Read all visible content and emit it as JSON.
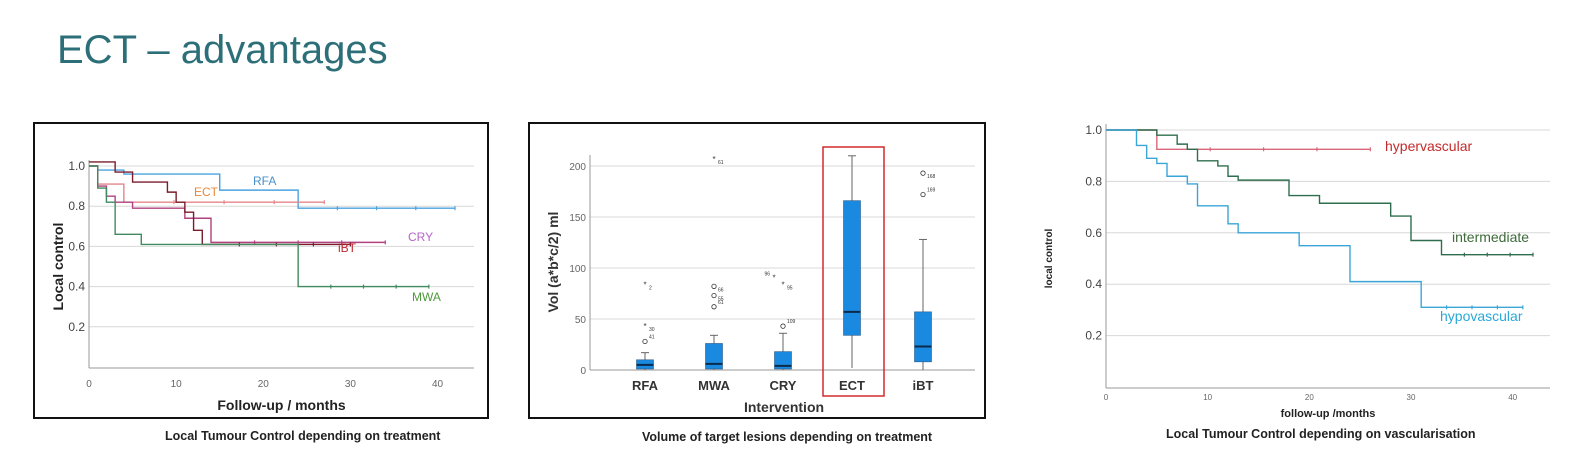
{
  "slide": {
    "title": "ECT – advantages",
    "captions": [
      "Local Tumour Control depending on treatment",
      "Volume of target lesions depending on treatment",
      "Local Tumour Control depending on vascularisation"
    ]
  },
  "chart_data": [
    {
      "type": "line",
      "subtype": "kaplan-meier step",
      "xlabel": "Follow-up / months",
      "ylabel": "Local control",
      "xlim": [
        0,
        42
      ],
      "ylim": [
        0,
        1.0
      ],
      "xticks": [
        "0",
        "10",
        "20",
        "30",
        "40"
      ],
      "yticks": [
        "0.2",
        "0.4",
        "0.6",
        "0.8",
        "1.0"
      ],
      "grid": true,
      "series": [
        {
          "name": "RFA",
          "color": "#4aa3df",
          "label_color": "#4a90c8",
          "steps": [
            [
              0,
              1.0
            ],
            [
              1,
              0.98
            ],
            [
              4,
              0.96
            ],
            [
              15,
              0.88
            ],
            [
              24,
              0.79
            ]
          ],
          "end": 42
        },
        {
          "name": "ECT",
          "color": "#e4868a",
          "label_color": "#e8893a",
          "steps": [
            [
              0,
              1.0
            ],
            [
              1,
              0.91
            ],
            [
              4,
              0.82
            ]
          ],
          "end": 27
        },
        {
          "name": "CRY",
          "color": "#b2427e",
          "label_color": "#b565c9",
          "steps": [
            [
              0,
              1.0
            ],
            [
              1,
              0.9
            ],
            [
              2,
              0.85
            ],
            [
              3,
              0.82
            ],
            [
              5,
              0.79
            ],
            [
              11,
              0.74
            ],
            [
              14,
              0.62
            ]
          ],
          "end": 34
        },
        {
          "name": "iBT",
          "color": "#7a1c2c",
          "label_color": "#c0262e",
          "steps": [
            [
              0,
              1.02
            ],
            [
              3,
              0.97
            ],
            [
              5,
              0.92
            ],
            [
              9,
              0.87
            ],
            [
              10,
              0.82
            ],
            [
              11,
              0.77
            ],
            [
              12,
              0.68
            ],
            [
              13,
              0.61
            ]
          ],
          "end": 30
        },
        {
          "name": "MWA",
          "color": "#3f8a5e",
          "label_color": "#4e9a3c",
          "steps": [
            [
              0,
              1.0
            ],
            [
              1,
              0.89
            ],
            [
              2,
              0.82
            ],
            [
              3,
              0.66
            ],
            [
              6,
              0.61
            ],
            [
              24,
              0.4
            ]
          ],
          "end": 39
        }
      ]
    },
    {
      "type": "box",
      "xlabel": "Intervention",
      "ylabel": "Vol (a*b*c/2) ml",
      "ylim": [
        0,
        210
      ],
      "yticks": [
        "0",
        "50",
        "100",
        "150",
        "200"
      ],
      "grid": true,
      "box_color": "#1a8ae0",
      "highlight": "ECT",
      "highlight_color": "#d42a2a",
      "categories": [
        "RFA",
        "MWA",
        "CRY",
        "ECT",
        "iBT"
      ],
      "boxes": [
        {
          "min": 0,
          "q1": 1,
          "median": 5,
          "q3": 10,
          "max": 17,
          "outliers": [
            {
              "v": 28,
              "label": "41",
              "mark": "o"
            },
            {
              "v": 43,
              "label": "30",
              "mark": "*"
            },
            {
              "v": 84,
              "label": "2",
              "mark": "*"
            }
          ]
        },
        {
          "min": 0,
          "q1": 1,
          "median": 6,
          "q3": 26,
          "max": 34,
          "outliers": [
            {
              "v": 62,
              "label": "61",
              "mark": "o"
            },
            {
              "v": 73,
              "label": "55",
              "mark": "o"
            },
            {
              "v": 82,
              "label": "66",
              "mark": "o"
            },
            {
              "v": 207,
              "label": "61",
              "mark": "*"
            }
          ]
        },
        {
          "min": 0,
          "q1": 1,
          "median": 4,
          "q3": 18,
          "max": 36,
          "outliers": [
            {
              "v": 43,
              "label": "109",
              "mark": "o"
            },
            {
              "v": 84,
              "label": "95",
              "mark": "*"
            },
            {
              "v": 86,
              "label": "96",
              "mark": "*"
            }
          ]
        },
        {
          "min": 2,
          "q1": 34,
          "median": 57,
          "q3": 166,
          "max": 210,
          "outliers": []
        },
        {
          "min": 0,
          "q1": 8,
          "median": 23,
          "q3": 57,
          "max": 128,
          "outliers": [
            {
              "v": 172,
              "label": "169",
              "mark": "o"
            },
            {
              "v": 193,
              "label": "168",
              "mark": "o"
            }
          ]
        }
      ]
    },
    {
      "type": "line",
      "subtype": "kaplan-meier step",
      "xlabel": "follow-up /months",
      "ylabel": "local control",
      "xlim": [
        0,
        42
      ],
      "ylim": [
        0,
        1.0
      ],
      "xticks": [
        "0",
        "10",
        "20",
        "30",
        "40"
      ],
      "yticks": [
        "0.2",
        "0.4",
        "0.6",
        "0.8",
        "1.0"
      ],
      "grid": true,
      "series": [
        {
          "name": "hypervascular",
          "color": "#d9667a",
          "label_color": "#c42a2a",
          "steps": [
            [
              0,
              1.0
            ],
            [
              5,
              0.925
            ]
          ],
          "end": 26
        },
        {
          "name": "intermediate",
          "color": "#2e6e4e",
          "label_color": "#3d6b3a",
          "steps": [
            [
              0,
              1.0
            ],
            [
              5,
              0.98
            ],
            [
              7,
              0.945
            ],
            [
              8,
              0.925
            ],
            [
              9,
              0.88
            ],
            [
              11,
              0.86
            ],
            [
              12,
              0.82
            ],
            [
              13,
              0.805
            ],
            [
              18,
              0.745
            ],
            [
              21,
              0.715
            ],
            [
              28,
              0.665
            ],
            [
              30,
              0.57
            ],
            [
              33,
              0.515
            ]
          ],
          "end": 42
        },
        {
          "name": "hypovascular",
          "color": "#3aa6d8",
          "label_color": "#2aa8d8",
          "steps": [
            [
              0,
              1.0
            ],
            [
              3,
              0.94
            ],
            [
              4,
              0.89
            ],
            [
              5,
              0.87
            ],
            [
              6,
              0.82
            ],
            [
              8,
              0.79
            ],
            [
              9,
              0.705
            ],
            [
              12,
              0.635
            ],
            [
              13,
              0.6
            ],
            [
              19,
              0.55
            ],
            [
              24,
              0.41
            ],
            [
              31,
              0.31
            ]
          ],
          "end": 41
        }
      ]
    }
  ]
}
